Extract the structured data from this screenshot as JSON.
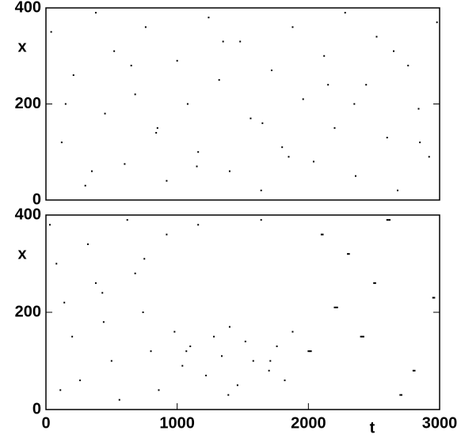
{
  "chart_data": [
    {
      "type": "scatter",
      "ylabel": "x",
      "xlim": [
        0,
        3000
      ],
      "ylim": [
        0,
        400
      ],
      "yticks": [
        0,
        200,
        400
      ],
      "color": "#000000",
      "x": [
        40,
        120,
        210,
        300,
        380,
        450,
        520,
        600,
        680,
        760,
        840,
        920,
        1000,
        1080,
        1160,
        1240,
        1320,
        1400,
        1480,
        1560,
        1640,
        1720,
        1800,
        1880,
        1960,
        2040,
        2120,
        2200,
        2280,
        2360,
        2440,
        2520,
        2600,
        2680,
        2760,
        2840,
        2920,
        2980,
        150,
        650,
        1150,
        1650,
        2150,
        2650,
        350,
        850,
        1350,
        1850,
        2350,
        2850
      ],
      "y": [
        350,
        120,
        260,
        30,
        390,
        180,
        310,
        75,
        220,
        360,
        140,
        40,
        290,
        200,
        100,
        380,
        250,
        60,
        330,
        170,
        20,
        270,
        110,
        360,
        210,
        80,
        300,
        150,
        390,
        50,
        240,
        340,
        130,
        20,
        280,
        190,
        90,
        370,
        200,
        280,
        70,
        160,
        240,
        310,
        60,
        150,
        330,
        90,
        200,
        120
      ]
    },
    {
      "type": "scatter",
      "ylabel": "x",
      "xlabel": "t",
      "xlim": [
        0,
        3000
      ],
      "ylim": [
        0,
        400
      ],
      "xticks": [
        0,
        1000,
        2000,
        3000
      ],
      "yticks": [
        0,
        200,
        400
      ],
      "color": "#000000",
      "x": [
        30,
        80,
        140,
        200,
        260,
        320,
        380,
        440,
        500,
        560,
        620,
        680,
        740,
        800,
        860,
        920,
        980,
        1040,
        1100,
        1160,
        1220,
        1280,
        1340,
        1400,
        1460,
        1520,
        1580,
        1640,
        1700,
        1760,
        1820,
        1880,
        110,
        430,
        750,
        1070,
        1390,
        1710,
        2000,
        2010,
        2020,
        2200,
        2210,
        2220,
        2400,
        2410,
        2420,
        2600,
        2610,
        2620,
        2800,
        2810,
        2950,
        2960,
        2300,
        2310,
        2500,
        2510,
        2700,
        2710,
        2100,
        2110
      ],
      "y": [
        380,
        300,
        220,
        150,
        60,
        340,
        260,
        180,
        100,
        20,
        390,
        280,
        200,
        120,
        40,
        360,
        160,
        90,
        130,
        380,
        70,
        150,
        110,
        170,
        50,
        140,
        100,
        390,
        80,
        130,
        60,
        160,
        40,
        240,
        310,
        120,
        30,
        100,
        120,
        120,
        120,
        210,
        210,
        210,
        150,
        150,
        150,
        390,
        390,
        390,
        80,
        80,
        230,
        230,
        320,
        320,
        260,
        260,
        30,
        30,
        360,
        360
      ]
    }
  ]
}
